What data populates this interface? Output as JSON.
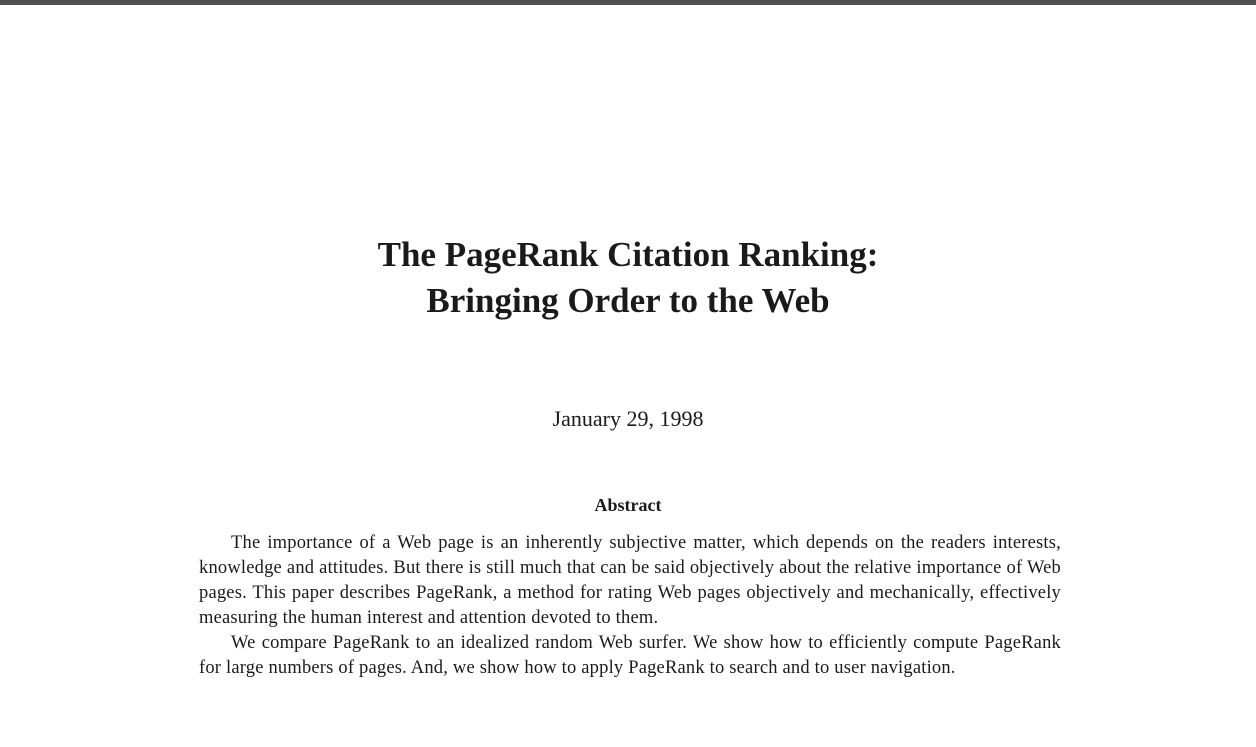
{
  "paper": {
    "title_line1": "The PageRank Citation Ranking:",
    "title_line2": "Bringing Order to the Web",
    "date": "January 29, 1998",
    "abstract_heading": "Abstract",
    "abstract_p1": "The importance of a Web page is an inherently subjective matter, which depends on the readers interests, knowledge and attitudes. But there is still much that can be said objectively about the relative importance of Web pages. This paper describes PageRank, a method for rating Web pages objectively and mechanically, effectively measuring the human interest and attention devoted to them.",
    "abstract_p2": "We compare PageRank to an idealized random Web surfer. We show how to efficiently compute PageRank for large numbers of pages. And, we show how to apply PageRank to search and to user navigation."
  }
}
